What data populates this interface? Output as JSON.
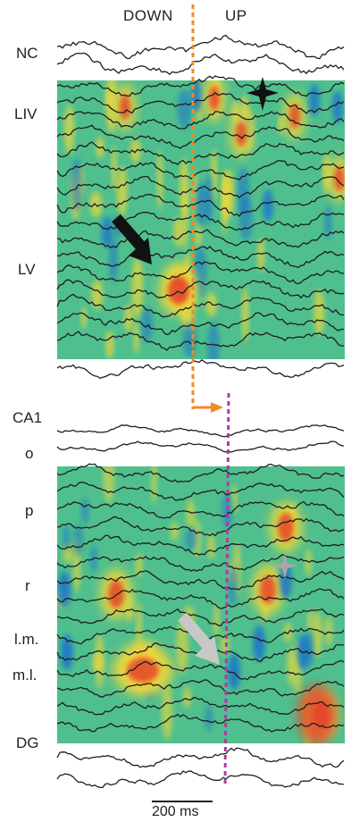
{
  "header": {
    "down_label": "DOWN",
    "up_label": "UP"
  },
  "layers": {
    "nc": "NC",
    "liv": "LIV",
    "lv": "LV",
    "ca1": "CA1",
    "o": "o",
    "p": "p",
    "r": "r",
    "lm": "l.m.",
    "ml": "m.l.",
    "dg": "DG"
  },
  "scale_bar": {
    "label": "200 ms"
  },
  "colors": {
    "background_green": "#4fbf8e",
    "positive_yellow": "#f2d83a",
    "positive_red": "#e4452a",
    "negative_blue": "#1f78c8",
    "trace": "#1e1e1e",
    "down_up_marker": "#f08a24",
    "hippocampal_marker": "#b03aa6",
    "arrow_dark": "#111111",
    "arrow_light": "#c8c8c8"
  },
  "markers": {
    "black_arrow": "black-arrow-icon",
    "gray_arrow": "gray-arrow-icon",
    "black_star": "black-star-icon",
    "gray_star": "gray-star-icon"
  }
}
